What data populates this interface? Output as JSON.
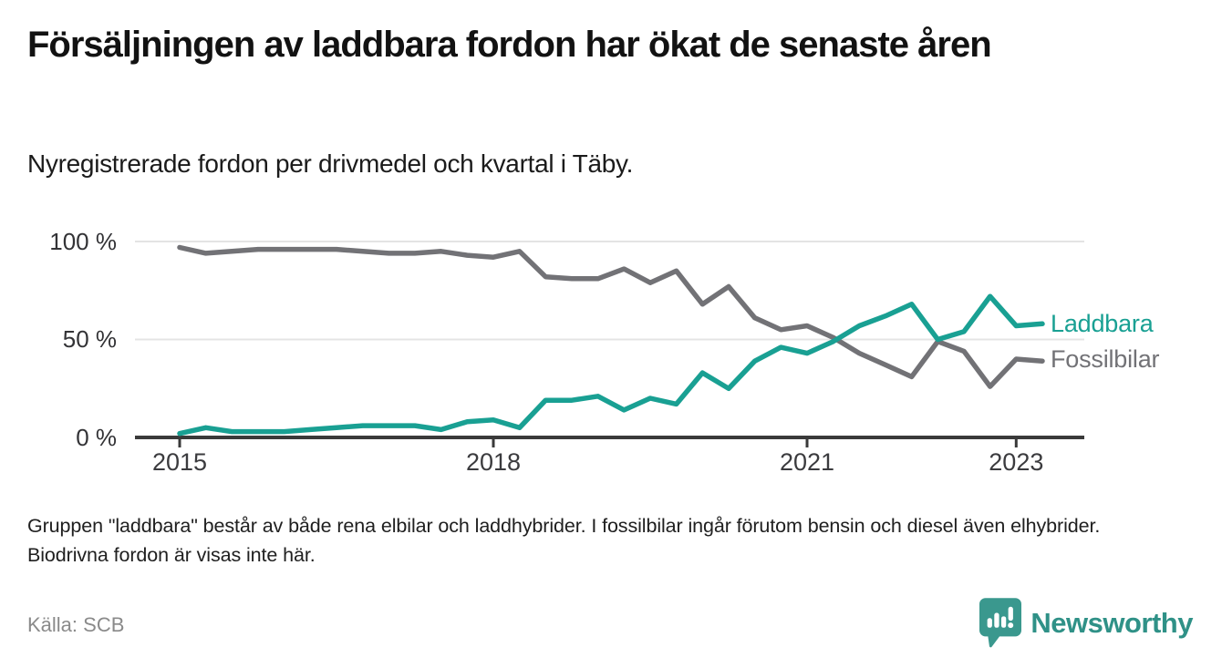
{
  "header": {
    "title": "Försäljningen av laddbara fordon har ökat de senaste åren",
    "subtitle": "Nyregistrerade fordon per drivmedel och kvartal i Täby."
  },
  "chart_data": {
    "type": "line",
    "title": "Nyregistrerade fordon per drivmedel och kvartal i Täby",
    "unit": "%",
    "ylim": [
      0,
      100
    ],
    "grid": "horizontal",
    "legend_position": "right-end-of-lines",
    "y_ticks": [
      "100 %",
      "50 %",
      "0 %"
    ],
    "x_tick_labels": [
      "2015",
      "2018",
      "2021",
      "2023"
    ],
    "x_tick_indices": [
      0,
      12,
      24,
      32
    ],
    "x": [
      "2015 Q1",
      "2015 Q2",
      "2015 Q3",
      "2015 Q4",
      "2016 Q1",
      "2016 Q2",
      "2016 Q3",
      "2016 Q4",
      "2017 Q1",
      "2017 Q2",
      "2017 Q3",
      "2017 Q4",
      "2018 Q1",
      "2018 Q2",
      "2018 Q3",
      "2018 Q4",
      "2019 Q1",
      "2019 Q2",
      "2019 Q3",
      "2019 Q4",
      "2020 Q1",
      "2020 Q2",
      "2020 Q3",
      "2020 Q4",
      "2021 Q1",
      "2021 Q2",
      "2021 Q3",
      "2021 Q4",
      "2022 Q1",
      "2022 Q2",
      "2022 Q3",
      "2022 Q4",
      "2023 Q1",
      "2023 Q2"
    ],
    "series": [
      {
        "name": "Laddbara",
        "color": "#19a093",
        "values": [
          2,
          5,
          3,
          3,
          3,
          4,
          5,
          6,
          6,
          6,
          4,
          8,
          9,
          5,
          19,
          19,
          21,
          14,
          20,
          17,
          33,
          25,
          39,
          46,
          43,
          49,
          57,
          62,
          68,
          50,
          54,
          72,
          57,
          58
        ]
      },
      {
        "name": "Fossilbilar",
        "color": "#727276",
        "values": [
          97,
          94,
          95,
          96,
          96,
          96,
          96,
          95,
          94,
          94,
          95,
          93,
          92,
          95,
          82,
          81,
          81,
          86,
          79,
          85,
          68,
          77,
          61,
          55,
          57,
          51,
          43,
          37,
          31,
          49,
          44,
          26,
          40,
          39
        ]
      }
    ]
  },
  "note": "Gruppen \"laddbara\" består av både rena elbilar och laddhybrider. I fossilbilar ingår förutom bensin och diesel även elhybrider. Biodrivna fordon är visas inte här.",
  "source": "Källa: SCB",
  "branding": {
    "logo_text": "Newsworthy",
    "logo_icon": "bar-chart-speech-bubble-icon",
    "logo_color": "#3a988e",
    "wordmark_color": "#2f9187"
  },
  "colors": {
    "accent_teal": "#19a093",
    "line_gray": "#727276",
    "gridline": "#e4e4e4",
    "axis": "#3a3a3a"
  }
}
